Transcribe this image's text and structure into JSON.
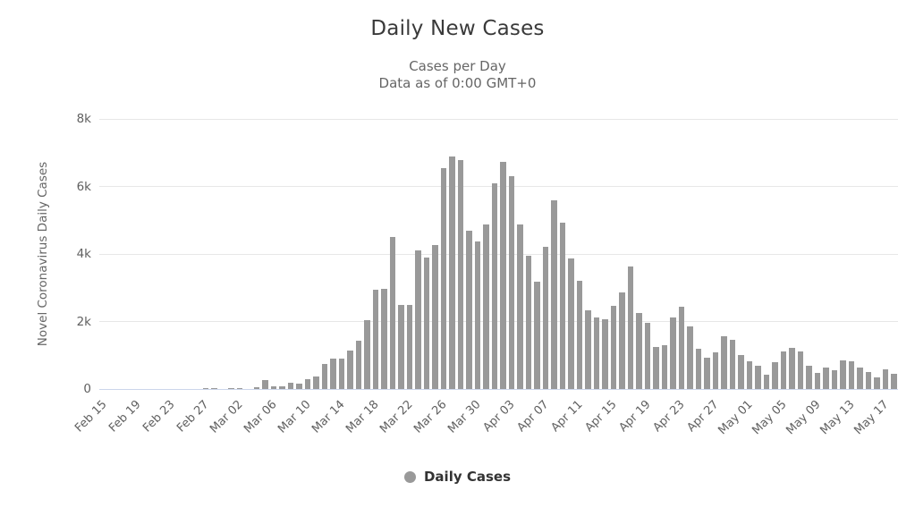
{
  "chart_data": {
    "type": "bar",
    "title": "Daily New Cases",
    "subtitle_line1": "Cases per Day",
    "subtitle_line2": "Data as of 0:00 GMT+0",
    "ylabel": "Novel Coronavirus Daily Cases",
    "legend": "Daily Cases",
    "ylim": [
      0,
      8000
    ],
    "ytick_step": 2000,
    "ytick_labels": [
      "0",
      "2k",
      "4k",
      "6k",
      "8k"
    ],
    "xtick_label_every": 4,
    "grid": "horizontal",
    "legend_position": "bottom",
    "colors": {
      "bar": "#999999",
      "axis_line": "#ccd6eb",
      "gridline": "#e7e7e7",
      "title": "#3a3a3a",
      "subtitle": "#666666",
      "axis_label": "#606060",
      "legend_text": "#333333",
      "background": "#ffffff"
    },
    "categories": [
      "Feb 15",
      "Feb 16",
      "Feb 17",
      "Feb 18",
      "Feb 19",
      "Feb 20",
      "Feb 21",
      "Feb 22",
      "Feb 23",
      "Feb 24",
      "Feb 25",
      "Feb 26",
      "Feb 27",
      "Feb 28",
      "Feb 29",
      "Mar 01",
      "Mar 02",
      "Mar 03",
      "Mar 04",
      "Mar 05",
      "Mar 06",
      "Mar 07",
      "Mar 08",
      "Mar 09",
      "Mar 10",
      "Mar 11",
      "Mar 12",
      "Mar 13",
      "Mar 14",
      "Mar 15",
      "Mar 16",
      "Mar 17",
      "Mar 18",
      "Mar 19",
      "Mar 20",
      "Mar 21",
      "Mar 22",
      "Mar 23",
      "Mar 24",
      "Mar 25",
      "Mar 26",
      "Mar 27",
      "Mar 28",
      "Mar 29",
      "Mar 30",
      "Mar 31",
      "Apr 01",
      "Apr 02",
      "Apr 03",
      "Apr 04",
      "Apr 05",
      "Apr 06",
      "Apr 07",
      "Apr 08",
      "Apr 09",
      "Apr 10",
      "Apr 11",
      "Apr 12",
      "Apr 13",
      "Apr 14",
      "Apr 15",
      "Apr 16",
      "Apr 17",
      "Apr 18",
      "Apr 19",
      "Apr 20",
      "Apr 21",
      "Apr 22",
      "Apr 23",
      "Apr 24",
      "Apr 25",
      "Apr 26",
      "Apr 27",
      "Apr 28",
      "Apr 29",
      "Apr 30",
      "May 01",
      "May 02",
      "May 03",
      "May 04",
      "May 05",
      "May 06",
      "May 07",
      "May 08",
      "May 09",
      "May 10",
      "May 11",
      "May 12",
      "May 13",
      "May 14",
      "May 15",
      "May 16",
      "May 17",
      "May 18"
    ],
    "values": [
      0,
      0,
      0,
      0,
      0,
      0,
      0,
      0,
      0,
      0,
      0,
      0,
      20,
      20,
      0,
      20,
      20,
      0,
      50,
      260,
      70,
      90,
      190,
      170,
      290,
      360,
      740,
      890,
      890,
      1130,
      1440,
      2050,
      2930,
      2970,
      4510,
      2480,
      2480,
      4110,
      3890,
      4270,
      6550,
      6900,
      6790,
      4690,
      4380,
      4870,
      6100,
      6740,
      6300,
      4870,
      3960,
      3190,
      4220,
      5580,
      4920,
      3880,
      3210,
      2330,
      2130,
      2070,
      2470,
      2850,
      3620,
      2260,
      1950,
      1250,
      1310,
      2110,
      2450,
      1860,
      1180,
      920,
      1090,
      1560,
      1460,
      1000,
      810,
      680,
      430,
      800,
      1110,
      1220,
      1100,
      680,
      490,
      640,
      550,
      860,
      810,
      640,
      500,
      350,
      590,
      460
    ]
  }
}
